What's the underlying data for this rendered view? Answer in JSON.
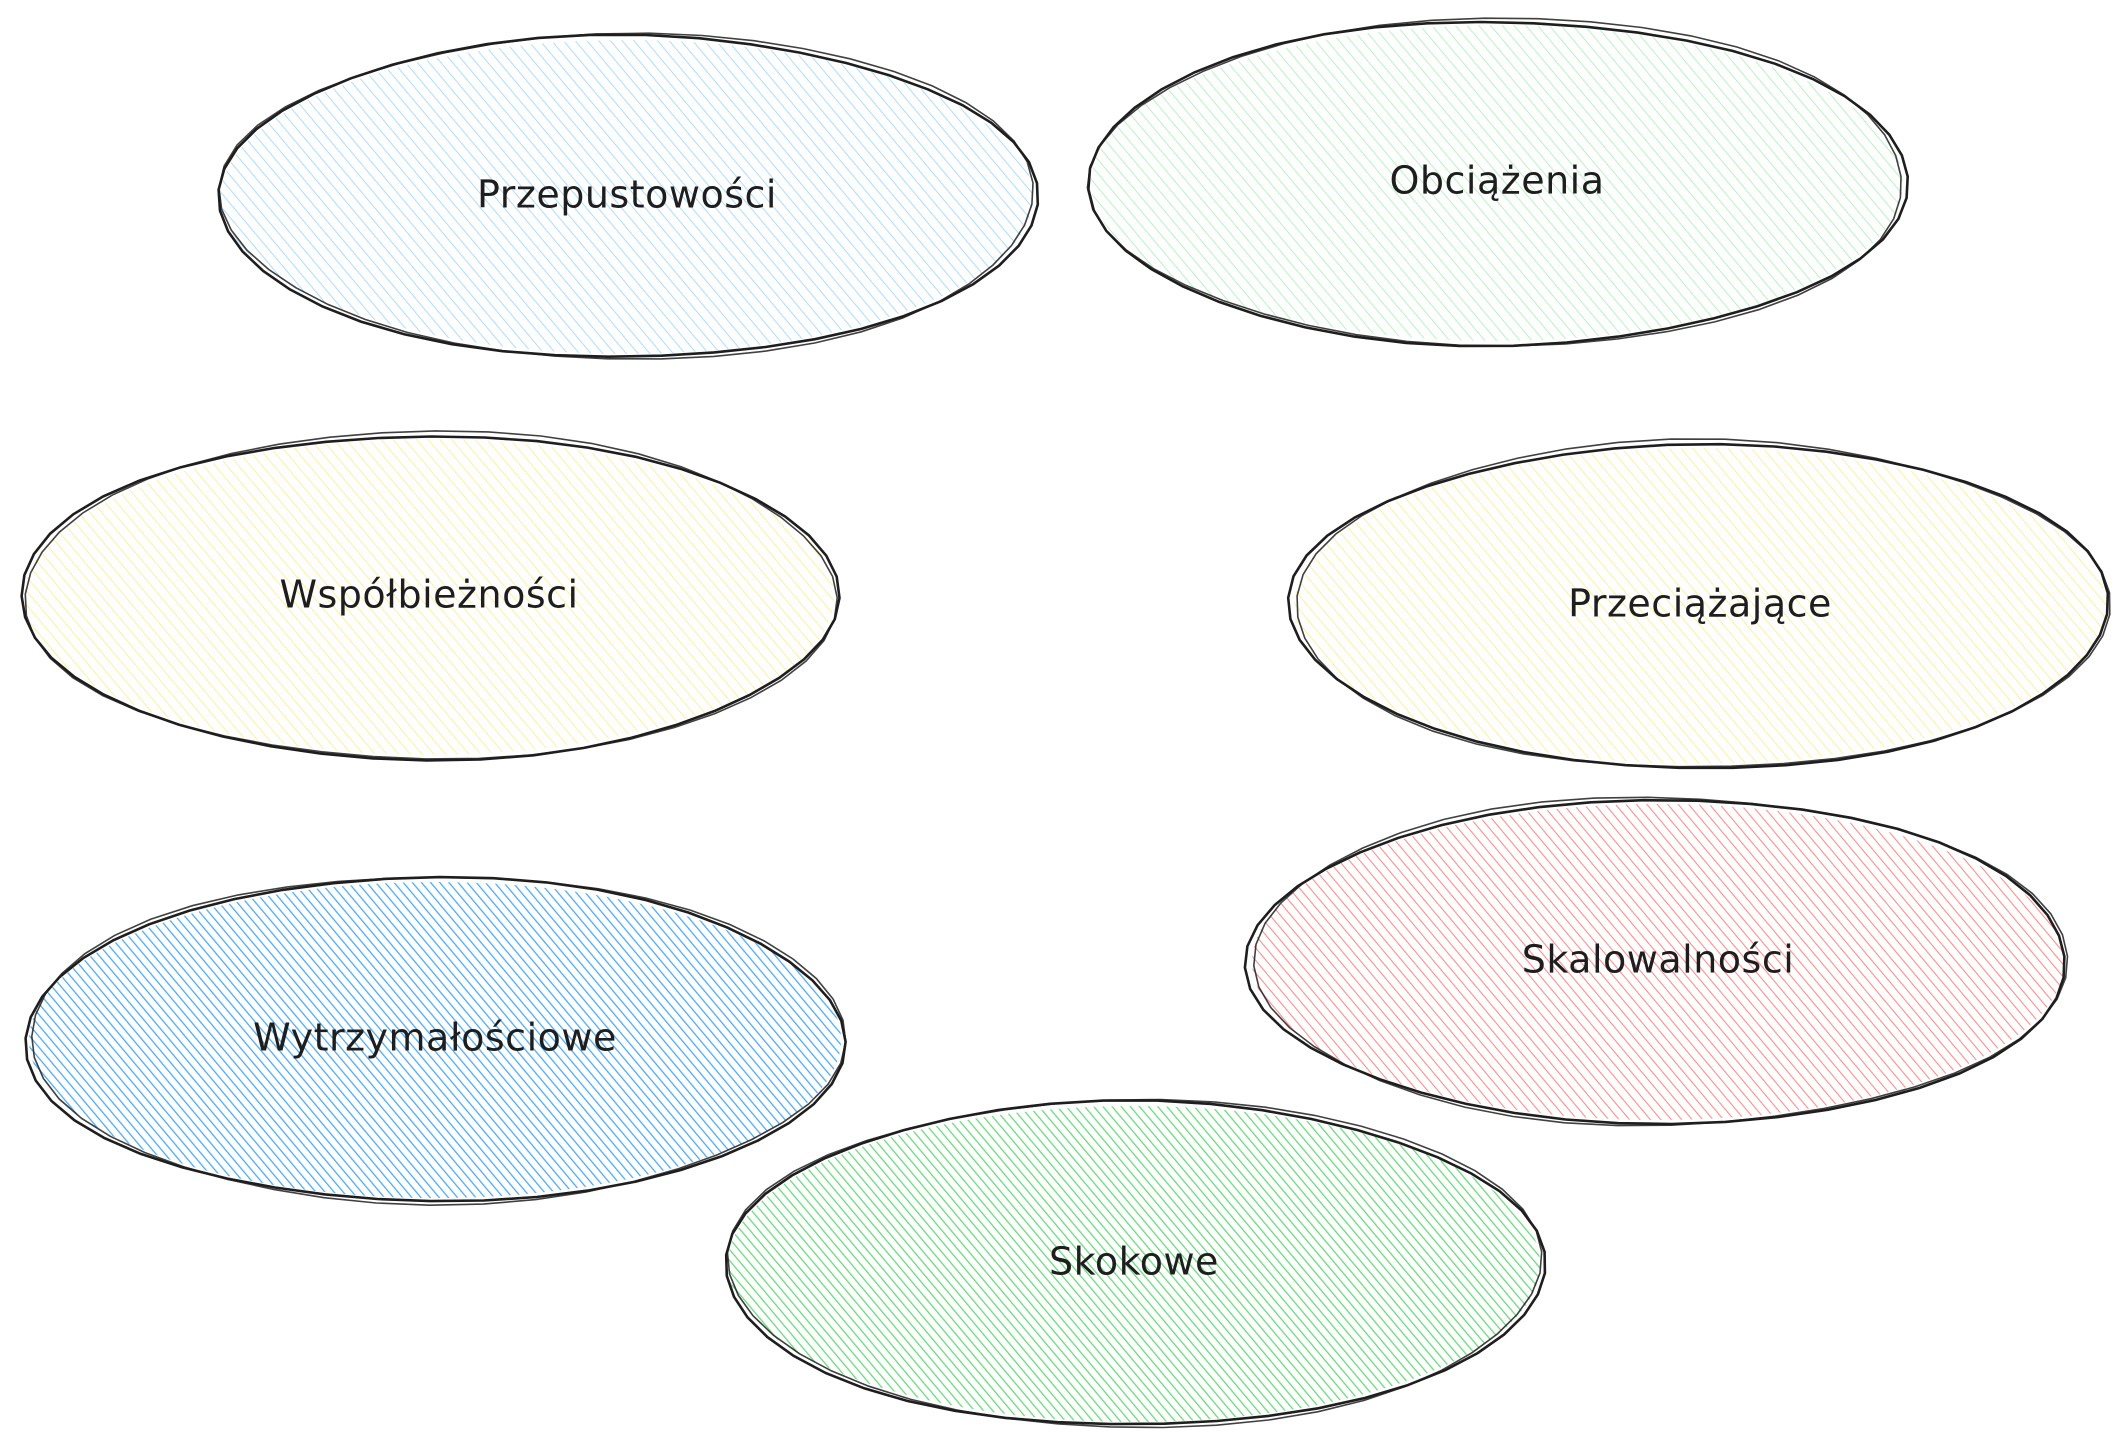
{
  "diagram": {
    "nodes": [
      {
        "id": "przepustowosci",
        "label": "Przepustowości",
        "fill": "#a5d8ff",
        "fill_strength": "light"
      },
      {
        "id": "obciazenia",
        "label": "Obciążenia",
        "fill": "#b2f2bb",
        "fill_strength": "light"
      },
      {
        "id": "wspolbieznosci",
        "label": "Współbieżności",
        "fill": "#ffec99",
        "fill_strength": "light"
      },
      {
        "id": "przeciazajace",
        "label": "Przeciążające",
        "fill": "#ffec99",
        "fill_strength": "light"
      },
      {
        "id": "skalowalnosci",
        "label": "Skalowalności",
        "fill": "#ff8787",
        "fill_strength": "medium"
      },
      {
        "id": "wytrzymalosciowe",
        "label": "Wytrzymałościowe",
        "fill": "#4dabf7",
        "fill_strength": "strong"
      },
      {
        "id": "skokowe",
        "label": "Skokowe",
        "fill": "#69db7c",
        "fill_strength": "strong"
      }
    ]
  }
}
